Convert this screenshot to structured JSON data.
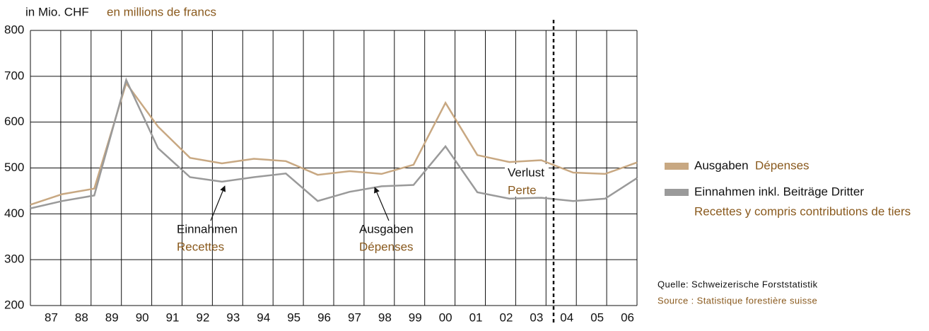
{
  "chart_data": {
    "type": "line",
    "unit_label": "in Mio. CHF",
    "unit_label_fr": "en millions de francs",
    "categories": [
      "87",
      "88",
      "89",
      "90",
      "91",
      "92",
      "93",
      "94",
      "95",
      "96",
      "97",
      "98",
      "99",
      "00",
      "01",
      "02",
      "03",
      "04",
      "05",
      "06"
    ],
    "series": [
      {
        "name": "Ausgaben",
        "name_fr": "Dépenses",
        "color": "#c8a882",
        "values": [
          420,
          443,
          455,
          685,
          590,
          522,
          510,
          520,
          515,
          485,
          493,
          487,
          507,
          642,
          528,
          513,
          517,
          490,
          487,
          512
        ]
      },
      {
        "name": "Einnahmen inkl. Beiträge Dritter",
        "name_fr": "Recettes y compris contributions de tiers",
        "color": "#9a9a9a",
        "values": [
          412,
          428,
          440,
          692,
          543,
          480,
          470,
          480,
          488,
          428,
          448,
          460,
          463,
          547,
          447,
          433,
          435,
          428,
          433,
          478
        ]
      }
    ],
    "ylim": [
      200,
      800
    ],
    "yticks": [
      200,
      300,
      400,
      500,
      600,
      700,
      800
    ],
    "grid": true,
    "annotations": [
      {
        "text": "Einnahmen",
        "text_fr": "Recettes"
      },
      {
        "text": "Ausgaben",
        "text_fr": "Dépenses"
      },
      {
        "text": "Verlust",
        "text_fr": "Perte"
      }
    ],
    "source": "Quelle: Schweizerische Forststatistik",
    "source_fr": "Source : Statistique forestière suisse"
  }
}
